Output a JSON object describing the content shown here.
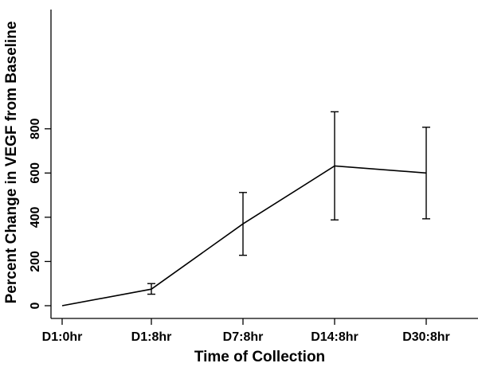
{
  "chart_data": {
    "type": "line",
    "xlabel": "Time of Collection",
    "ylabel": "Percent Change in VEGF from Baseline",
    "categories": [
      "D1:0hr",
      "D1:8hr",
      "D7:8hr",
      "D14:8hr",
      "D30:8hr"
    ],
    "series": [
      {
        "values": [
          0,
          75,
          370,
          632,
          600
        ],
        "error_low": [
          0,
          52,
          228,
          388,
          393
        ],
        "error_high": [
          0,
          100,
          512,
          877,
          807
        ]
      }
    ],
    "yticks": [
      0,
      200,
      400,
      600,
      800
    ],
    "ylim": [
      0,
      900
    ],
    "grid": false,
    "legend": "none"
  }
}
